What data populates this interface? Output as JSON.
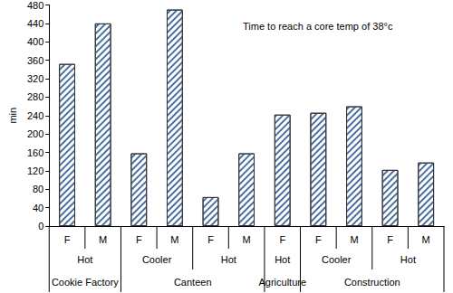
{
  "chart_data": {
    "type": "bar",
    "annotation": "Time to reach a core temp of 38°c",
    "ylabel": "min",
    "categories": [
      "F",
      "M",
      "F",
      "M",
      "F",
      "M",
      "F",
      "F",
      "M",
      "F",
      "M"
    ],
    "conditions": [
      "Hot",
      "Hot",
      "Cooler",
      "Cooler",
      "Hot",
      "Hot",
      "Hot",
      "Cooler",
      "Cooler",
      "Hot",
      "Hot"
    ],
    "sites": [
      "Cookie Factory",
      "Cookie Factory",
      "Canteen",
      "Canteen",
      "Canteen",
      "Canteen",
      "Agriculture",
      "Construction",
      "Construction",
      "Construction",
      "Construction"
    ],
    "values": [
      352,
      440,
      158,
      470,
      63,
      158,
      242,
      246,
      260,
      122,
      138
    ],
    "color": "#4a6fa0",
    "ylim": [
      0,
      480
    ],
    "yticks": [
      0,
      40,
      80,
      120,
      160,
      200,
      240,
      280,
      320,
      360,
      400,
      440,
      480
    ],
    "grid": false
  }
}
